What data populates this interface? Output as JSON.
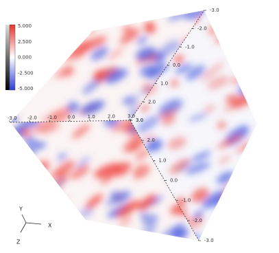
{
  "colorbar": {
    "labels": [
      "5.000",
      "2.500",
      "0.000",
      "-2.500",
      "-5.000"
    ]
  },
  "axes": {
    "front_edge": [
      "3.0",
      "2.0",
      "1.0",
      "0.0",
      "-1.0",
      "-2.0",
      "-3.0"
    ],
    "top_edge": [
      "-3.0",
      "-2.0",
      "-1.0",
      "0.0",
      "1.0",
      "2.0",
      "3.0"
    ],
    "back_edge": [
      "-3.0",
      "-2.0",
      "-1.0",
      "0.0",
      "1.0",
      "2.0",
      "3.0"
    ]
  },
  "triad": {
    "y": "Y",
    "x": "X",
    "z": "Z"
  }
}
